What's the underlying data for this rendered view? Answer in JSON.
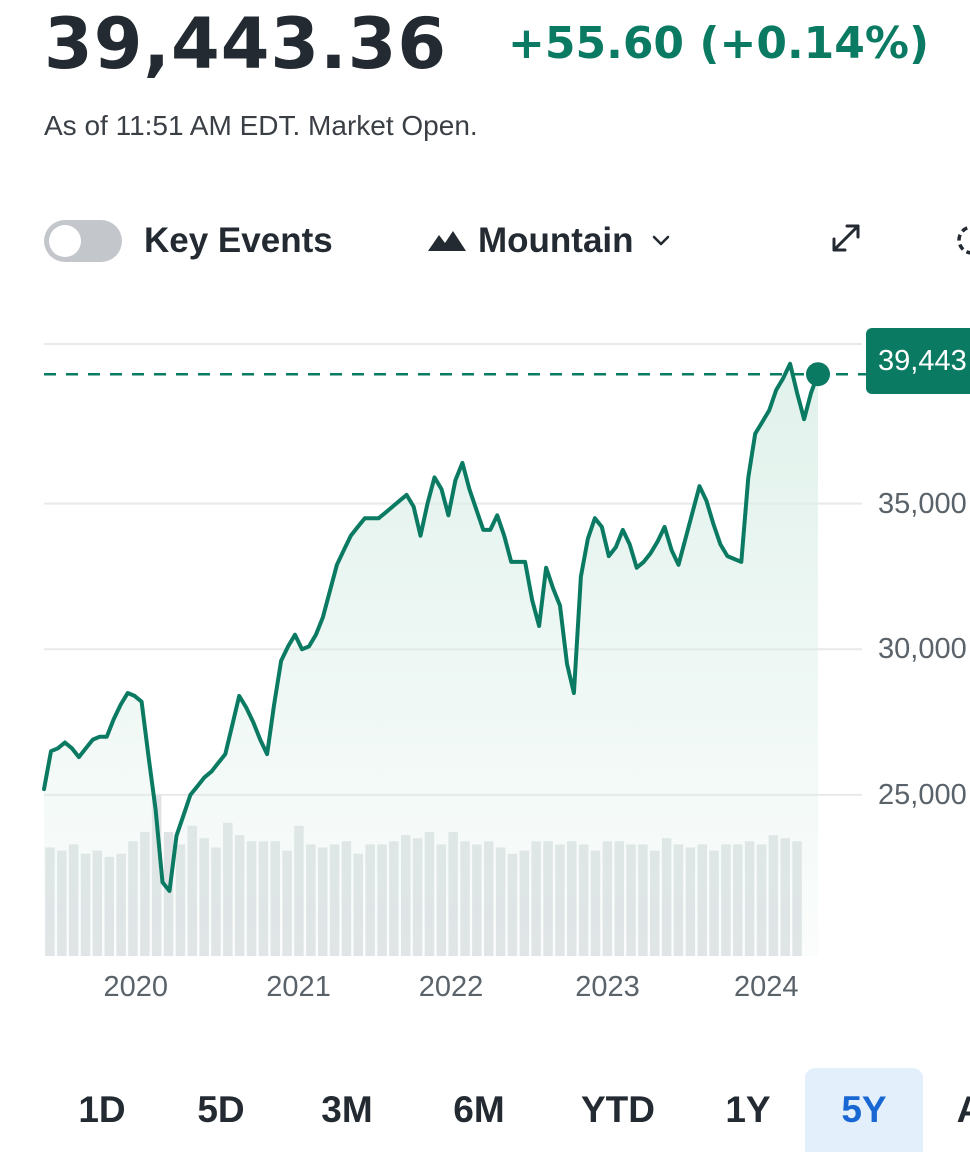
{
  "quote": {
    "price": "39,443.36",
    "change": "+55.60 (+0.14%)",
    "as_of": "As of 11:51 AM EDT. Market Open."
  },
  "toolbar": {
    "key_events_label": "Key Events",
    "key_events_on": false,
    "chart_type_label": "Mountain",
    "icons": [
      "toggle-switch",
      "mountain-icon",
      "chevron-down-icon",
      "expand-icon",
      "settings-icon"
    ]
  },
  "ranges": {
    "items": [
      "1D",
      "5D",
      "3M",
      "6M",
      "YTD",
      "1Y",
      "5Y",
      "A"
    ],
    "selected": "5Y"
  },
  "colors": {
    "accent": "#0a7b62",
    "area_fill": "#dcefe8",
    "volume_bar": "#e0e3e6",
    "grid": "#e7e9eb",
    "active_tab_bg": "#e3effb",
    "active_tab_text": "#1967d2"
  },
  "chart_data": {
    "type": "area",
    "series": [
      {
        "values": [
          25200,
          26500,
          26600,
          26800,
          26600,
          26300,
          26600,
          26900,
          27000,
          27000,
          27600,
          28100,
          28500,
          28400,
          28200,
          26300,
          24500,
          22000,
          21700,
          23600,
          24300,
          25000,
          25300,
          25600,
          25800,
          26100,
          26400,
          27400,
          28400,
          28000,
          27500,
          26900,
          26400,
          28100,
          29600,
          30100,
          30500,
          30000,
          30100,
          30500,
          31100,
          32000,
          32900,
          33400,
          33900,
          34200,
          34500,
          34500,
          34500,
          34700,
          34900,
          35100,
          35300,
          34900,
          33900,
          35000,
          35900,
          35500,
          34600,
          35800,
          36400,
          35500,
          34800,
          34100,
          34100,
          34600,
          33900,
          33000,
          33000,
          33000,
          31700,
          30800,
          32800,
          32100,
          31500,
          29500,
          28500,
          32500,
          33800,
          34500,
          34200,
          33200,
          33500,
          34100,
          33600,
          32800,
          33000,
          33300,
          33700,
          34200,
          33400,
          32900,
          33800,
          34700,
          35600,
          35100,
          34300,
          33600,
          33200,
          33100,
          33000,
          35900,
          37400,
          37800,
          38200,
          38900,
          39300,
          39800,
          38800,
          37900,
          38800,
          39443
        ]
      }
    ],
    "x_ticks": [
      "2020",
      "2021",
      "2022",
      "2023",
      "2024"
    ],
    "x_tick_positions": [
      0.1186,
      0.3289,
      0.5258,
      0.7281,
      0.9331
    ],
    "y_ticks": [
      25000,
      30000,
      35000
    ],
    "y_tick_labels": [
      "25,000",
      "30,000",
      "35,000"
    ],
    "ylim": [
      19470,
      40000
    ],
    "current_value": 39443.36,
    "current_value_label": "39,443",
    "volume": [
      0.35,
      0.34,
      0.36,
      0.33,
      0.34,
      0.32,
      0.33,
      0.37,
      0.4,
      0.52,
      0.4,
      0.36,
      0.42,
      0.38,
      0.35,
      0.43,
      0.39,
      0.37,
      0.37,
      0.37,
      0.34,
      0.42,
      0.36,
      0.35,
      0.36,
      0.37,
      0.33,
      0.36,
      0.36,
      0.37,
      0.39,
      0.38,
      0.4,
      0.36,
      0.4,
      0.37,
      0.36,
      0.37,
      0.35,
      0.33,
      0.34,
      0.37,
      0.37,
      0.36,
      0.37,
      0.36,
      0.34,
      0.37,
      0.37,
      0.36,
      0.36,
      0.34,
      0.38,
      0.36,
      0.35,
      0.36,
      0.34,
      0.36,
      0.36,
      0.37,
      0.36,
      0.39,
      0.38,
      0.37
    ]
  }
}
